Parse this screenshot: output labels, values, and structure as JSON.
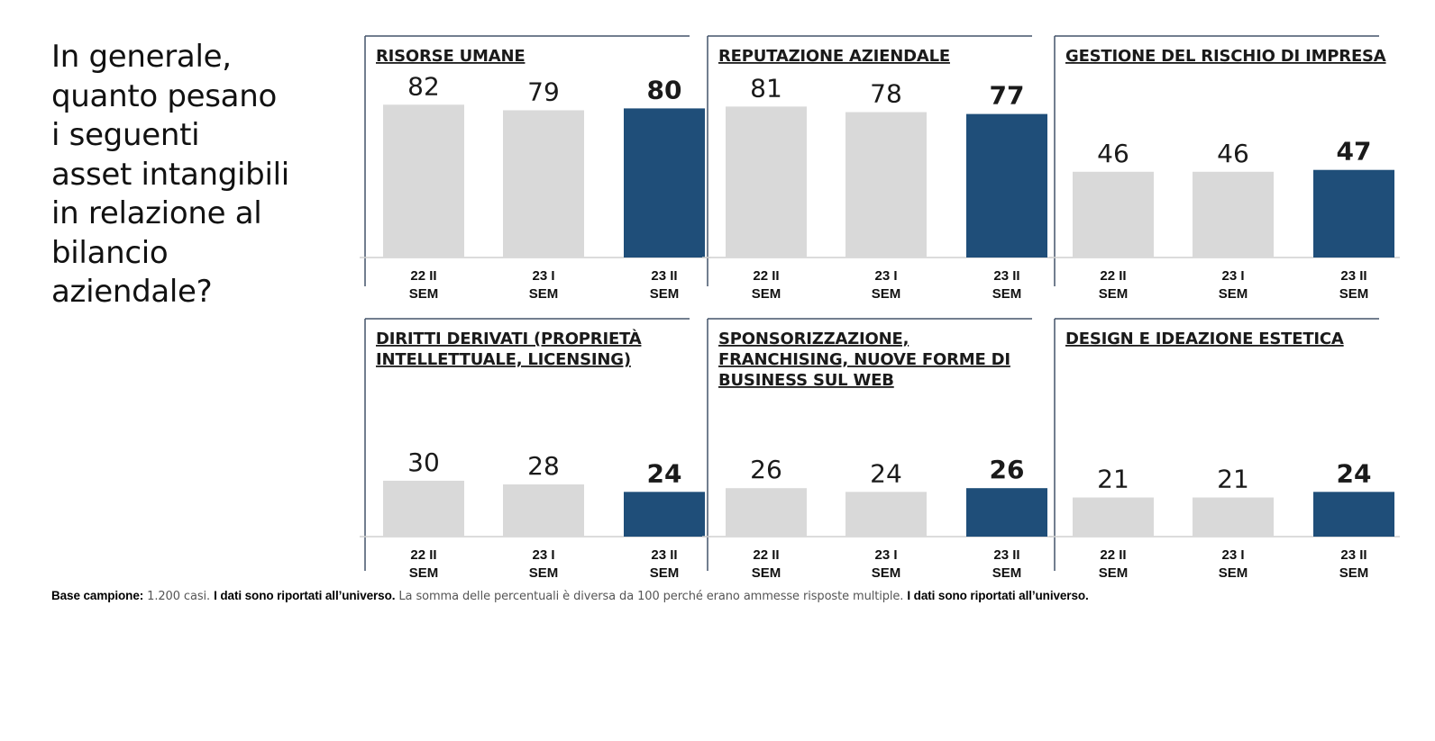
{
  "question": {
    "lines": [
      "In generale,",
      "quanto pesano",
      "i seguenti",
      "asset intangibili",
      "in relazione al",
      "bilancio",
      "aziendale?"
    ]
  },
  "footnote": {
    "base_label": "Base campione:",
    "base_value": " 1.200 casi. ",
    "universe_1": "I dati sono riportati all’universo.",
    "sum_note": " La somma delle percentuali è diversa da 100 perché erano ammesse risposte multiple. ",
    "universe_2": "I dati sono riportati all’universo."
  },
  "colors": {
    "past": "#d9d9d9",
    "current": "#1f4e79",
    "axis": "#d0d0d0",
    "frame": "#44546a"
  },
  "chart_data": [
    {
      "type": "bar",
      "title_lines": [
        "RISORSE UMANE"
      ],
      "categories": [
        [
          "22 II",
          "SEM"
        ],
        [
          "23 I",
          "SEM"
        ],
        [
          "23 II",
          "SEM"
        ]
      ],
      "values": [
        82,
        79,
        80
      ],
      "highlight_index": 2,
      "ylim": [
        0,
        100
      ]
    },
    {
      "type": "bar",
      "title_lines": [
        "REPUTAZIONE AZIENDALE"
      ],
      "categories": [
        [
          "22 II",
          "SEM"
        ],
        [
          "23 I",
          "SEM"
        ],
        [
          "23 II",
          "SEM"
        ]
      ],
      "values": [
        81,
        78,
        77
      ],
      "highlight_index": 2,
      "ylim": [
        0,
        100
      ]
    },
    {
      "type": "bar",
      "title_lines": [
        "GESTIONE DEL RISCHIO DI IMPRESA"
      ],
      "categories": [
        [
          "22 II",
          "SEM"
        ],
        [
          "23 I",
          "SEM"
        ],
        [
          "23 II",
          "SEM"
        ]
      ],
      "values": [
        46,
        46,
        47
      ],
      "highlight_index": 2,
      "ylim": [
        0,
        100
      ]
    },
    {
      "type": "bar",
      "title_lines": [
        "DIRITTI DERIVATI (PROPRIETÀ",
        "INTELLETTUALE, LICENSING)"
      ],
      "categories": [
        [
          "22 II",
          "SEM"
        ],
        [
          "23 I",
          "SEM"
        ],
        [
          "23 II",
          "SEM"
        ]
      ],
      "values": [
        30,
        28,
        24
      ],
      "highlight_index": 2,
      "ylim": [
        0,
        100
      ]
    },
    {
      "type": "bar",
      "title_lines": [
        "SPONSORIZZAZIONE,",
        "FRANCHISING, NUOVE FORME DI",
        "BUSINESS SUL WEB"
      ],
      "categories": [
        [
          "22 II",
          "SEM"
        ],
        [
          "23 I",
          "SEM"
        ],
        [
          "23 II",
          "SEM"
        ]
      ],
      "values": [
        26,
        24,
        26
      ],
      "highlight_index": 2,
      "ylim": [
        0,
        100
      ]
    },
    {
      "type": "bar",
      "title_lines": [
        "DESIGN E IDEAZIONE ESTETICA"
      ],
      "categories": [
        [
          "22 II",
          "SEM"
        ],
        [
          "23 I",
          "SEM"
        ],
        [
          "23 II",
          "SEM"
        ]
      ],
      "values": [
        21,
        21,
        24
      ],
      "highlight_index": 2,
      "ylim": [
        0,
        100
      ]
    }
  ]
}
